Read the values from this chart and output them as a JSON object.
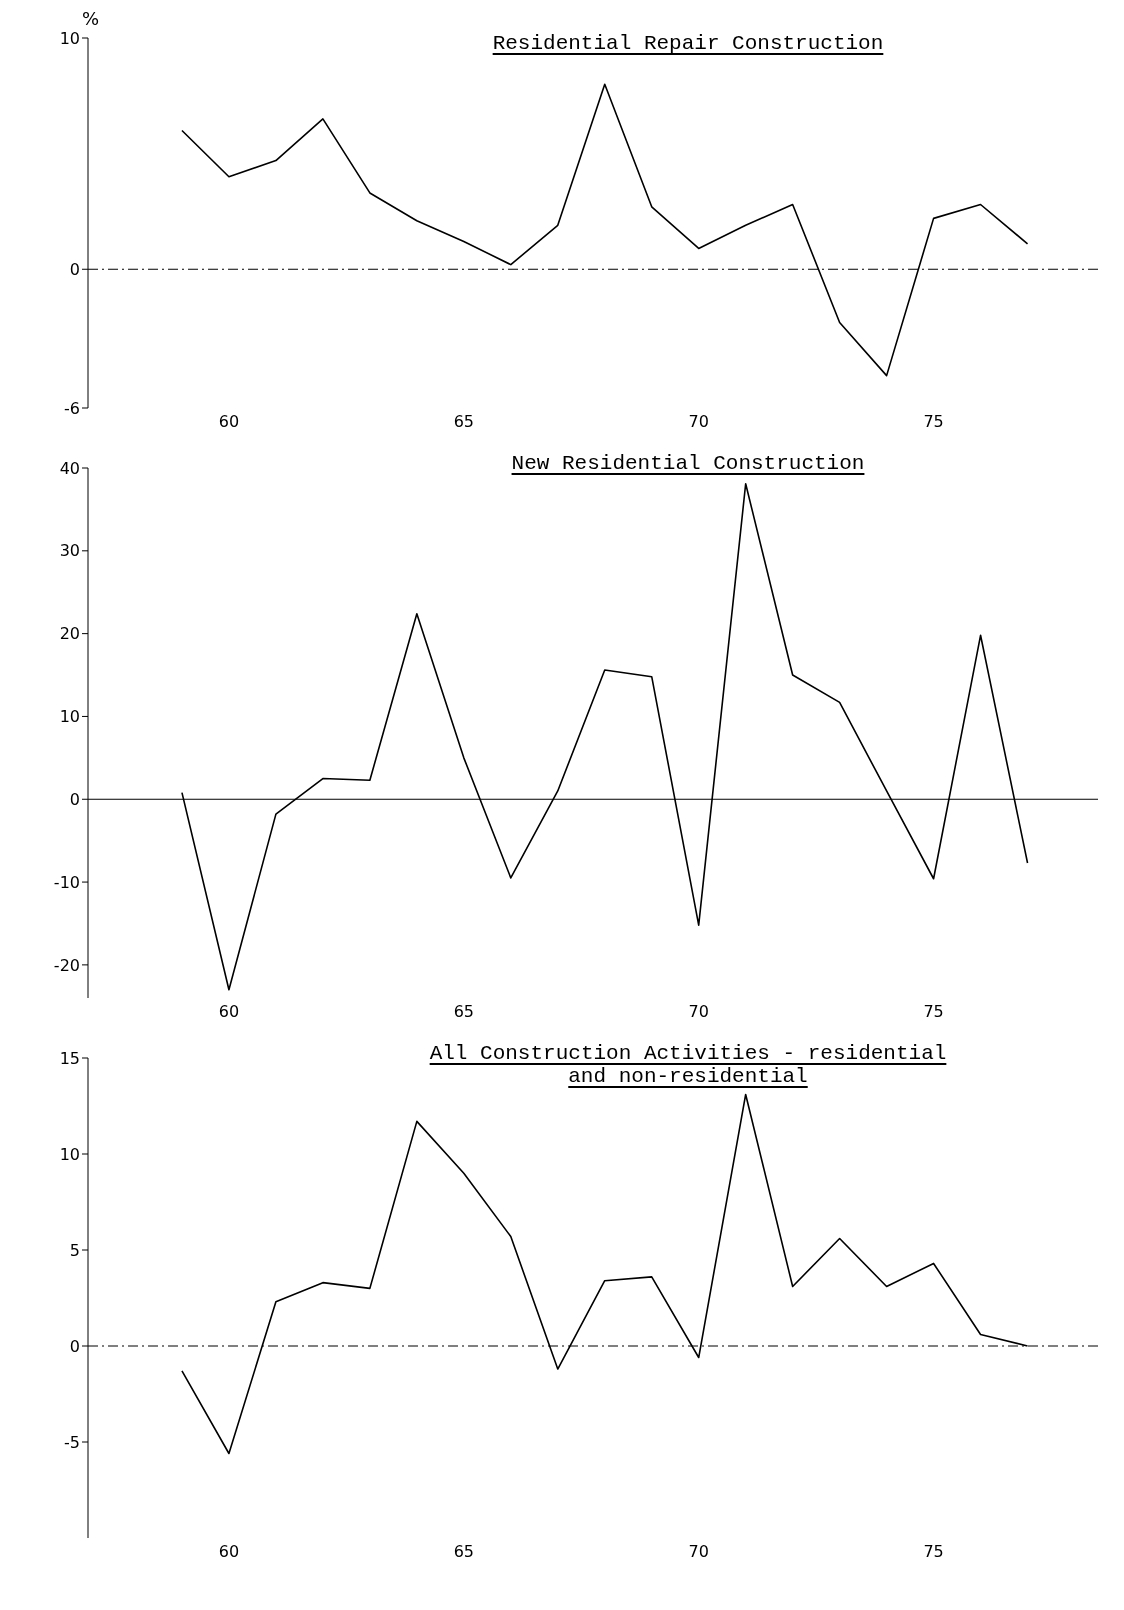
{
  "chart_data": [
    {
      "type": "line",
      "title": "Residential Repair Construction",
      "ylabel": "%",
      "x": [
        59,
        60,
        61,
        62,
        63,
        64,
        65,
        66,
        67,
        68,
        69,
        70,
        71,
        72,
        73,
        74,
        75,
        76,
        77
      ],
      "series": [
        {
          "color": "#000000",
          "values": [
            6.0,
            4.0,
            4.7,
            6.5,
            3.3,
            2.1,
            1.2,
            0.2,
            1.9,
            8.0,
            2.7,
            0.9,
            1.9,
            2.8,
            -2.3,
            -4.6,
            2.2,
            2.8,
            1.1
          ]
        }
      ],
      "xlim": [
        57,
        78.5
      ],
      "xticks": [
        60,
        65,
        70,
        75
      ],
      "ylim": [
        -6,
        10
      ],
      "yticks": [
        -6,
        0,
        10
      ],
      "grid": false,
      "legend": false,
      "marker": "none",
      "line_style": "solid",
      "ref_lines": [
        {
          "axis": "y",
          "value": 0,
          "line_style": "dashed",
          "color": "#000000"
        }
      ]
    },
    {
      "type": "line",
      "title": "New Residential Construction",
      "x": [
        59,
        60,
        61,
        62,
        63,
        64,
        65,
        66,
        67,
        68,
        69,
        70,
        71,
        72,
        73,
        74,
        75,
        76,
        77
      ],
      "series": [
        {
          "color": "#000000",
          "values": [
            0.8,
            -23,
            -1.8,
            2.5,
            2.3,
            22.4,
            5.0,
            -9.5,
            1.0,
            15.6,
            14.8,
            -15.2,
            38.1,
            15.0,
            11.7,
            1.0,
            -9.6,
            19.8,
            -7.7
          ]
        }
      ],
      "xlim": [
        57,
        78.5
      ],
      "xticks": [
        60,
        65,
        70,
        75
      ],
      "ylim": [
        -24,
        40
      ],
      "yticks": [
        -20,
        -10,
        0,
        10,
        20,
        30,
        40
      ],
      "grid": false,
      "legend": false,
      "marker": "none",
      "line_style": "solid",
      "ref_lines": [
        {
          "axis": "y",
          "value": 0,
          "line_style": "solid",
          "color": "#000000"
        }
      ]
    },
    {
      "type": "line",
      "title": "All Construction Activities - residential and non-residential",
      "x": [
        59,
        60,
        61,
        62,
        63,
        64,
        65,
        66,
        67,
        68,
        69,
        70,
        71,
        72,
        73,
        74,
        75,
        76,
        77
      ],
      "series": [
        {
          "color": "#000000",
          "values": [
            -1.3,
            -5.6,
            2.3,
            3.3,
            3.0,
            11.7,
            9.0,
            5.7,
            -1.2,
            3.4,
            3.6,
            -0.6,
            13.1,
            3.1,
            5.6,
            3.1,
            4.3,
            0.6,
            0.0
          ]
        }
      ],
      "xlim": [
        57,
        78.5
      ],
      "xticks": [
        60,
        65,
        70,
        75
      ],
      "ylim": [
        -10,
        15
      ],
      "yticks": [
        -5,
        0,
        5,
        10,
        15
      ],
      "grid": false,
      "legend": false,
      "marker": "none",
      "line_style": "solid",
      "ref_lines": [
        {
          "axis": "y",
          "value": 0,
          "line_style": "dashed",
          "color": "#000000"
        }
      ]
    }
  ]
}
